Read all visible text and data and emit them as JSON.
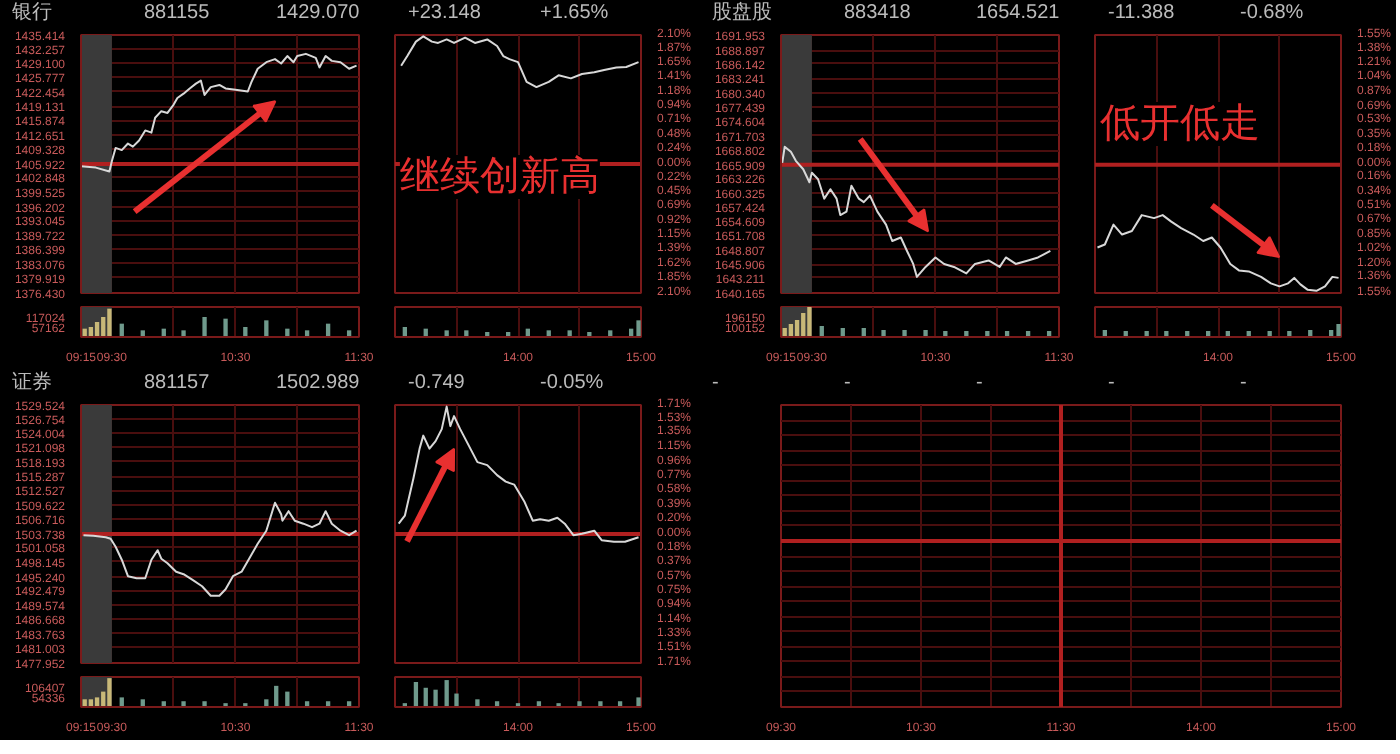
{
  "chart_data": [
    {
      "type": "line",
      "title": "银行",
      "annotations": [
        "881155",
        "1429.070",
        "+23.148",
        "+1.65%"
      ],
      "x": [
        9.25,
        9.37,
        9.48,
        9.5,
        9.53,
        9.58,
        9.63,
        9.67,
        9.72,
        9.77,
        9.82,
        9.85,
        9.9,
        9.95,
        10.0,
        10.03,
        10.08,
        10.13,
        10.18,
        10.22,
        10.25,
        10.3,
        10.37,
        10.42,
        10.5,
        10.6,
        10.63,
        10.68,
        10.75,
        10.82,
        10.87,
        10.92,
        10.97,
        11.0,
        11.07,
        11.15,
        11.18,
        11.23,
        11.28,
        11.35,
        11.42,
        11.48
      ],
      "series": [
        {
          "color": "#d8d8d8",
          "values": [
            1405.4,
            1405.1,
            1404.2,
            1406.6,
            1409.6,
            1409.1,
            1410.6,
            1409.9,
            1411.3,
            1413.6,
            1413.1,
            1416.5,
            1418.0,
            1417.6,
            1419.5,
            1421.0,
            1422.0,
            1423.2,
            1424.3,
            1425.0,
            1421.7,
            1423.5,
            1424.0,
            1423.2,
            1422.9,
            1422.5,
            1424.7,
            1427.7,
            1429.2,
            1429.9,
            1428.9,
            1430.6,
            1429.2,
            1430.6,
            1431.1,
            1430.2,
            1428.0,
            1430.6,
            1429.5,
            1429.2,
            1427.7,
            1428.4
          ]
        }
      ],
      "xlim": [
        9.25,
        11.5
      ],
      "xticks": [
        {
          "value": 9.25,
          "label": null
        },
        {
          "value": 9.5,
          "label": null
        },
        {
          "value": 10,
          "label": null
        },
        {
          "value": 10.5,
          "label": null
        },
        {
          "value": 11,
          "label": null
        },
        {
          "value": 11.5,
          "label": null
        }
      ],
      "ylim": [
        1376.43,
        1435.414
      ],
      "yticks": [
        1435.414,
        1432.257,
        {
          "value": 1429.1,
          "label": "1429.100"
        },
        1425.777,
        1422.454,
        1419.131,
        1415.874,
        1412.651,
        1409.328,
        1405.922,
        1402.848,
        1399.525,
        1396.202,
        1393.045,
        1389.722,
        1386.399,
        1383.076,
        1379.919,
        {
          "value": 1376.43,
          "label": "1376.430"
        }
      ],
      "tick_labels": "y",
      "grid": true,
      "ref_lines": [
        {
          "axis": "y",
          "value": 1405.922,
          "color": "#b02020"
        }
      ],
      "bands": [
        {
          "axis": "x",
          "from": 9.25,
          "to": 9.5,
          "color": "#3a3a3a"
        }
      ]
    },
    {
      "type": "line",
      "annotations": [
        "继续创新高"
      ],
      "x": [
        13.05,
        13.1,
        13.17,
        13.23,
        13.3,
        13.35,
        13.42,
        13.48,
        13.57,
        13.65,
        13.75,
        13.83,
        13.88,
        13.93,
        14.0,
        14.07,
        14.15,
        14.25,
        14.33,
        14.43,
        14.52,
        14.62,
        14.7,
        14.8,
        14.88,
        14.98
      ],
      "series": [
        {
          "color": "#d8d8d8",
          "values": [
            1428.4,
            1430.6,
            1433.9,
            1435.1,
            1433.9,
            1433.6,
            1434.4,
            1433.6,
            1434.8,
            1433.6,
            1434.4,
            1432.9,
            1430.6,
            1429.9,
            1429.2,
            1424.7,
            1423.5,
            1424.7,
            1426.2,
            1425.5,
            1426.5,
            1426.9,
            1427.4,
            1428.0,
            1428.1,
            1429.2
          ]
        }
      ],
      "xlim": [
        13,
        15
      ],
      "xticks": [
        {
          "value": 13.5,
          "label": null
        },
        {
          "value": 14,
          "label": null
        },
        {
          "value": 14.5,
          "label": null
        },
        {
          "value": 15,
          "label": null
        }
      ],
      "ylim": [
        1376.43,
        1435.414
      ],
      "y2lim": [
        -2.1,
        2.1
      ],
      "y2ticks": [
        {
          "value": 2.1,
          "label": "2.10%"
        },
        {
          "value": 1.87,
          "label": "1.87%"
        },
        {
          "value": 1.65,
          "label": "1.65%"
        },
        {
          "value": 1.41,
          "label": "1.41%"
        },
        {
          "value": 1.18,
          "label": "1.18%"
        },
        {
          "value": 0.94,
          "label": "0.94%"
        },
        {
          "value": 0.71,
          "label": "0.71%"
        },
        {
          "value": 0.48,
          "label": "0.48%"
        },
        {
          "value": 0.24,
          "label": "0.24%"
        },
        {
          "value": 0,
          "label": "0.00%"
        },
        {
          "value": -0.22,
          "label": "0.22%"
        },
        {
          "value": -0.45,
          "label": "0.45%"
        },
        {
          "value": -0.69,
          "label": "0.69%"
        },
        {
          "value": -0.92,
          "label": "0.92%"
        },
        {
          "value": -1.15,
          "label": "1.15%"
        },
        {
          "value": -1.39,
          "label": "1.39%"
        },
        {
          "value": -1.62,
          "label": "1.62%"
        },
        {
          "value": -1.85,
          "label": "1.85%"
        },
        {
          "value": -2.1,
          "label": "2.10%"
        }
      ],
      "tick_labels": "y",
      "grid": true,
      "ref_lines": [
        {
          "axis": "y",
          "value": 1405.922,
          "color": "#b02020"
        }
      ]
    },
    {
      "type": "bar",
      "series": [
        {
          "color": "#c8b878",
          "x": [
            9.28,
            9.33,
            9.38,
            9.43,
            9.48
          ],
          "values": [
            50000,
            60000,
            90000,
            120000,
            170000
          ]
        },
        {
          "color": "#6f9a8c",
          "x": [
            9.58,
            9.75,
            9.92,
            10.08,
            10.25,
            10.42,
            10.58,
            10.75,
            10.92,
            11.08,
            11.25,
            11.42
          ],
          "values": [
            80000,
            40000,
            50000,
            40000,
            120000,
            110000,
            60000,
            100000,
            50000,
            40000,
            80000,
            40000
          ]
        }
      ],
      "xlim": [
        9.25,
        11.5
      ],
      "xticks": [
        {
          "value": 9.25,
          "label": "09:15"
        },
        {
          "value": 9.5,
          "label": "09:30"
        },
        {
          "value": 10,
          "label": null
        },
        {
          "value": 10.5,
          "label": "10:30"
        },
        {
          "value": 11,
          "label": null
        },
        {
          "value": 11.5,
          "label": "11:30"
        }
      ],
      "ylim": [
        0,
        180000
      ],
      "yticks": [
        117024,
        57162
      ],
      "grid": "x",
      "bands": [
        {
          "axis": "x",
          "from": 9.25,
          "to": 9.5,
          "color": "#3a3a3a"
        }
      ]
    },
    {
      "type": "bar",
      "series": [
        {
          "color": "#6f9a8c",
          "x": [
            13.08,
            13.25,
            13.42,
            13.58,
            13.75,
            13.92,
            14.08,
            14.25,
            14.42,
            14.58,
            14.75,
            14.92,
            14.98
          ],
          "values": [
            60000,
            50000,
            40000,
            40000,
            30000,
            30000,
            50000,
            40000,
            40000,
            30000,
            40000,
            50000,
            100000
          ]
        }
      ],
      "xlim": [
        13,
        15
      ],
      "xticks": [
        {
          "value": 13.5,
          "label": null
        },
        {
          "value": 14,
          "label": "14:00"
        },
        {
          "value": 14.5,
          "label": null
        },
        {
          "value": 15,
          "label": "15:00"
        }
      ],
      "ylim": [
        0,
        180000
      ],
      "grid": "x",
      "tick_labels": "x"
    },
    {
      "type": "line",
      "title": "股盘股",
      "annotations": [
        "883418",
        "1654.521",
        "-11.388",
        "-0.68%"
      ],
      "x": [
        9.26,
        9.28,
        9.33,
        9.37,
        9.43,
        9.48,
        9.5,
        9.55,
        9.6,
        9.65,
        9.7,
        9.73,
        9.78,
        9.82,
        9.88,
        9.92,
        9.97,
        10.03,
        10.1,
        10.15,
        10.22,
        10.27,
        10.32,
        10.35,
        10.42,
        10.5,
        10.57,
        10.65,
        10.75,
        10.82,
        10.93,
        11.02,
        11.07,
        11.15,
        11.25,
        11.33,
        11.43
      ],
      "series": [
        {
          "color": "#d8d8d8",
          "values": [
            1666.3,
            1669.5,
            1668.5,
            1666.7,
            1665.0,
            1662.4,
            1664.3,
            1663.0,
            1659.1,
            1661.0,
            1659.1,
            1655.8,
            1656.5,
            1661.7,
            1659.1,
            1658.4,
            1659.7,
            1656.5,
            1653.9,
            1650.6,
            1651.3,
            1648.6,
            1646.0,
            1643.4,
            1645.4,
            1647.3,
            1646.0,
            1645.4,
            1644.1,
            1646.0,
            1646.7,
            1645.4,
            1647.3,
            1646.0,
            1646.7,
            1647.3,
            1648.6
          ]
        }
      ],
      "xlim": [
        9.25,
        11.5
      ],
      "xticks": [
        {
          "value": 9.25,
          "label": null
        },
        {
          "value": 9.5,
          "label": null
        },
        {
          "value": 10,
          "label": null
        },
        {
          "value": 10.5,
          "label": null
        },
        {
          "value": 11,
          "label": null
        },
        {
          "value": 11.5,
          "label": null
        }
      ],
      "ylim": [
        1640.165,
        1691.953
      ],
      "yticks": [
        1691.953,
        1688.897,
        1686.142,
        1683.241,
        {
          "value": 1680.34,
          "label": "1680.340"
        },
        1677.439,
        1674.604,
        1671.703,
        1668.802,
        1665.909,
        1663.226,
        1660.325,
        1657.424,
        1654.609,
        1651.708,
        1648.807,
        1645.906,
        1643.211,
        1640.165
      ],
      "tick_labels": "y",
      "grid": true,
      "ref_lines": [
        {
          "axis": "y",
          "value": 1665.909,
          "color": "#b02020"
        }
      ],
      "bands": [
        {
          "axis": "x",
          "from": 9.25,
          "to": 9.5,
          "color": "#3a3a3a"
        }
      ]
    },
    {
      "type": "line",
      "annotations": [
        "低开低走"
      ],
      "x": [
        13.02,
        13.08,
        13.15,
        13.22,
        13.3,
        13.38,
        13.48,
        13.55,
        13.62,
        13.7,
        13.8,
        13.88,
        13.95,
        14.02,
        14.1,
        14.17,
        14.25,
        14.35,
        14.43,
        14.5,
        14.57,
        14.62,
        14.67,
        14.73,
        14.8,
        14.87,
        14.93,
        14.98
      ],
      "series": [
        {
          "color": "#d8d8d8",
          "values": [
            1649.3,
            1649.9,
            1653.9,
            1651.9,
            1652.6,
            1655.8,
            1655.2,
            1655.8,
            1654.5,
            1653.2,
            1651.9,
            1650.6,
            1651.3,
            1649.3,
            1646.0,
            1644.7,
            1644.5,
            1643.4,
            1642.1,
            1641.5,
            1642.1,
            1643.2,
            1641.9,
            1640.8,
            1640.6,
            1641.5,
            1643.4,
            1643.2
          ]
        }
      ],
      "xlim": [
        13,
        15
      ],
      "xticks": [
        {
          "value": 13.5,
          "label": null
        },
        {
          "value": 14,
          "label": null
        },
        {
          "value": 14.5,
          "label": null
        },
        {
          "value": 15,
          "label": null
        }
      ],
      "ylim": [
        1640.165,
        1691.953
      ],
      "y2lim": [
        -1.55,
        1.55
      ],
      "y2ticks": [
        {
          "value": 1.55,
          "label": "1.55%"
        },
        {
          "value": 1.38,
          "label": "1.38%"
        },
        {
          "value": 1.21,
          "label": "1.21%"
        },
        {
          "value": 1.04,
          "label": "1.04%"
        },
        {
          "value": 0.87,
          "label": "0.87%"
        },
        {
          "value": 0.69,
          "label": "0.69%"
        },
        {
          "value": 0.53,
          "label": "0.53%"
        },
        {
          "value": 0.35,
          "label": "0.35%"
        },
        {
          "value": 0.18,
          "label": "0.18%"
        },
        {
          "value": 0,
          "label": "0.00%"
        },
        {
          "value": -0.16,
          "label": "0.16%"
        },
        {
          "value": -0.34,
          "label": "0.34%"
        },
        {
          "value": -0.51,
          "label": "0.51%"
        },
        {
          "value": -0.67,
          "label": "0.67%"
        },
        {
          "value": -0.85,
          "label": "0.85%"
        },
        {
          "value": -1.02,
          "label": "1.02%"
        },
        {
          "value": -1.2,
          "label": "1.20%"
        },
        {
          "value": -1.36,
          "label": "1.36%"
        },
        {
          "value": -1.55,
          "label": "1.55%"
        }
      ],
      "tick_labels": "y",
      "grid": true,
      "ref_lines": [
        {
          "axis": "y",
          "value": 1665.909,
          "color": "#b02020"
        }
      ]
    },
    {
      "type": "bar",
      "series": [
        {
          "color": "#c8b878",
          "x": [
            9.28,
            9.33,
            9.38,
            9.43,
            9.48
          ],
          "values": [
            90000,
            130000,
            170000,
            240000,
            300000
          ]
        },
        {
          "color": "#6f9a8c",
          "x": [
            9.58,
            9.75,
            9.92,
            10.08,
            10.25,
            10.42,
            10.58,
            10.75,
            10.92,
            11.08,
            11.25,
            11.42
          ],
          "values": [
            110000,
            90000,
            90000,
            70000,
            70000,
            70000,
            60000,
            60000,
            60000,
            60000,
            60000,
            60000
          ]
        }
      ],
      "xlim": [
        9.25,
        11.5
      ],
      "xticks": [
        {
          "value": 9.25,
          "label": "09:15"
        },
        {
          "value": 9.5,
          "label": "09:30"
        },
        {
          "value": 10,
          "label": null
        },
        {
          "value": 10.5,
          "label": "10:30"
        },
        {
          "value": 11,
          "label": null
        },
        {
          "value": 11.5,
          "label": "11:30"
        }
      ],
      "ylim": [
        0,
        300000
      ],
      "yticks": [
        196150,
        100152
      ],
      "grid": "x",
      "bands": [
        {
          "axis": "x",
          "from": 9.25,
          "to": 9.5,
          "color": "#3a3a3a"
        }
      ]
    },
    {
      "type": "bar",
      "series": [
        {
          "color": "#6f9a8c",
          "x": [
            13.08,
            13.25,
            13.42,
            13.58,
            13.75,
            13.92,
            14.08,
            14.25,
            14.42,
            14.58,
            14.75,
            14.92,
            14.98
          ],
          "values": [
            70000,
            60000,
            60000,
            60000,
            60000,
            60000,
            60000,
            60000,
            60000,
            60000,
            70000,
            70000,
            130000
          ]
        }
      ],
      "xlim": [
        13,
        15
      ],
      "xticks": [
        {
          "value": 13.5,
          "label": null
        },
        {
          "value": 14,
          "label": "14:00"
        },
        {
          "value": 14.5,
          "label": null
        },
        {
          "value": 15,
          "label": "15:00"
        }
      ],
      "ylim": [
        0,
        300000
      ],
      "grid": "x",
      "tick_labels": "x"
    },
    {
      "type": "line",
      "title": "证券",
      "annotations": [
        "881157",
        "1502.989",
        "-0.749",
        "-0.05%"
      ],
      "x": [
        9.27,
        9.35,
        9.45,
        9.49,
        9.53,
        9.58,
        9.63,
        9.7,
        9.77,
        9.82,
        9.87,
        9.9,
        9.95,
        10.02,
        10.08,
        10.15,
        10.23,
        10.3,
        10.37,
        10.42,
        10.48,
        10.55,
        10.62,
        10.68,
        10.75,
        10.82,
        10.87,
        10.88,
        10.93,
        10.98,
        11.05,
        11.12,
        11.18,
        11.23,
        11.28,
        11.35,
        11.42,
        11.48
      ],
      "series": [
        {
          "color": "#d8d8d8",
          "values": [
            1503.5,
            1503.4,
            1503.1,
            1502.8,
            1501.2,
            1498.6,
            1495.3,
            1494.9,
            1494.9,
            1498.6,
            1500.5,
            1498.8,
            1497.9,
            1496.2,
            1495.7,
            1494.6,
            1493.3,
            1491.4,
            1491.4,
            1492.7,
            1495.3,
            1496.2,
            1499.2,
            1501.8,
            1504.4,
            1510.0,
            1507.7,
            1506.4,
            1508.3,
            1506.4,
            1505.8,
            1505.1,
            1505.8,
            1508.3,
            1505.8,
            1504.4,
            1503.5,
            1504.4
          ]
        }
      ],
      "xlim": [
        9.25,
        11.5
      ],
      "xticks": [
        {
          "value": 9.25,
          "label": null
        },
        {
          "value": 9.5,
          "label": null
        },
        {
          "value": 10,
          "label": null
        },
        {
          "value": 10.5,
          "label": null
        },
        {
          "value": 11,
          "label": null
        },
        {
          "value": 11.5,
          "label": null
        }
      ],
      "ylim": [
        1477.952,
        1529.524
      ],
      "yticks": [
        1529.524,
        1526.754,
        1524.004,
        1521.098,
        1518.193,
        1515.287,
        1512.527,
        1509.622,
        1506.716,
        1503.738,
        1501.058,
        1498.145,
        {
          "value": 1495.24,
          "label": "1495.240"
        },
        1492.479,
        1489.574,
        1486.668,
        1483.763,
        1481.003,
        1477.952
      ],
      "tick_labels": "y",
      "grid": true,
      "ref_lines": [
        {
          "axis": "y",
          "value": 1503.738,
          "color": "#b02020"
        }
      ],
      "bands": [
        {
          "axis": "x",
          "from": 9.25,
          "to": 9.5,
          "color": "#3a3a3a"
        }
      ]
    },
    {
      "type": "line",
      "x": [
        13.03,
        13.08,
        13.15,
        13.2,
        13.23,
        13.28,
        13.33,
        13.38,
        13.42,
        13.45,
        13.48,
        13.53,
        13.6,
        13.67,
        13.75,
        13.83,
        13.9,
        13.97,
        14.05,
        14.12,
        14.18,
        14.25,
        14.32,
        14.38,
        14.45,
        14.52,
        14.62,
        14.68,
        14.78,
        14.87,
        14.98
      ],
      "series": [
        {
          "color": "#d8d8d8",
          "values": [
            1505.8,
            1507.4,
            1514.9,
            1520.8,
            1523.4,
            1520.8,
            1522.3,
            1524.7,
            1529.2,
            1525.3,
            1527.3,
            1524.7,
            1521.4,
            1518.1,
            1517.5,
            1515.5,
            1514.2,
            1513.6,
            1510.3,
            1506.4,
            1506.7,
            1506.4,
            1507.0,
            1505.8,
            1503.5,
            1503.8,
            1504.4,
            1502.5,
            1502.2,
            1502.2,
            1503.1
          ]
        }
      ],
      "xlim": [
        13,
        15
      ],
      "xticks": [
        {
          "value": 13.5,
          "label": null
        },
        {
          "value": 14,
          "label": null
        },
        {
          "value": 14.5,
          "label": null
        },
        {
          "value": 15,
          "label": null
        }
      ],
      "ylim": [
        1477.952,
        1529.524
      ],
      "y2lim": [
        -1.71,
        1.71
      ],
      "y2ticks": [
        {
          "value": 1.71,
          "label": "1.71%"
        },
        {
          "value": 1.53,
          "label": "1.53%"
        },
        {
          "value": 1.35,
          "label": "1.35%"
        },
        {
          "value": 1.15,
          "label": "1.15%"
        },
        {
          "value": 0.96,
          "label": "0.96%"
        },
        {
          "value": 0.77,
          "label": "0.77%"
        },
        {
          "value": 0.58,
          "label": "0.58%"
        },
        {
          "value": 0.39,
          "label": "0.39%"
        },
        {
          "value": 0.2,
          "label": "0.20%"
        },
        {
          "value": 0,
          "label": "0.00%"
        },
        {
          "value": -0.18,
          "label": "0.18%"
        },
        {
          "value": -0.37,
          "label": "0.37%"
        },
        {
          "value": -0.57,
          "label": "0.57%"
        },
        {
          "value": -0.75,
          "label": "0.75%"
        },
        {
          "value": -0.94,
          "label": "0.94%"
        },
        {
          "value": -1.14,
          "label": "1.14%"
        },
        {
          "value": -1.33,
          "label": "1.33%"
        },
        {
          "value": -1.51,
          "label": "1.51%"
        },
        {
          "value": -1.71,
          "label": "1.71%"
        }
      ],
      "tick_labels": "y",
      "grid": true,
      "ref_lines": [
        {
          "axis": "y",
          "value": 1503.738,
          "color": "#b02020"
        }
      ]
    },
    {
      "type": "bar",
      "series": [
        {
          "color": "#c8b878",
          "x": [
            9.28,
            9.33,
            9.38,
            9.43,
            9.48
          ],
          "values": [
            40000,
            40000,
            50000,
            80000,
            150000
          ]
        },
        {
          "color": "#6f9a8c",
          "x": [
            9.58,
            9.75,
            9.92,
            10.08,
            10.25,
            10.42,
            10.58,
            10.75,
            10.83,
            10.92,
            11.08,
            11.25,
            11.42
          ],
          "values": [
            50000,
            40000,
            30000,
            30000,
            30000,
            20000,
            20000,
            40000,
            110000,
            80000,
            30000,
            30000,
            30000
          ]
        }
      ],
      "xlim": [
        9.25,
        11.5
      ],
      "xticks": [
        {
          "value": 9.25,
          "label": "09:15"
        },
        {
          "value": 9.5,
          "label": "09:30"
        },
        {
          "value": 10,
          "label": null
        },
        {
          "value": 10.5,
          "label": "10:30"
        },
        {
          "value": 11,
          "label": null
        },
        {
          "value": 11.5,
          "label": "11:30"
        }
      ],
      "ylim": [
        0,
        156000
      ],
      "yticks": [
        106407,
        54336
      ],
      "grid": "x",
      "bands": [
        {
          "axis": "x",
          "from": 9.25,
          "to": 9.5,
          "color": "#3a3a3a"
        }
      ]
    },
    {
      "type": "bar",
      "series": [
        {
          "color": "#6f9a8c",
          "x": [
            13.08,
            13.17,
            13.25,
            13.33,
            13.42,
            13.5,
            13.67,
            13.83,
            14.0,
            14.17,
            14.33,
            14.5,
            14.67,
            14.83,
            14.98
          ],
          "values": [
            20000,
            130000,
            100000,
            90000,
            140000,
            70000,
            40000,
            30000,
            20000,
            30000,
            20000,
            30000,
            30000,
            30000,
            50000
          ]
        }
      ],
      "xlim": [
        13,
        15
      ],
      "xticks": [
        {
          "value": 13.5,
          "label": null
        },
        {
          "value": 14,
          "label": "14:00"
        },
        {
          "value": 14.5,
          "label": null
        },
        {
          "value": 15,
          "label": "15:00"
        }
      ],
      "ylim": [
        0,
        156000
      ],
      "grid": "x",
      "tick_labels": "x"
    },
    {
      "type": "other",
      "annotations": [
        "-",
        "-",
        "-",
        "-",
        "-",
        "09:30",
        "10:30",
        "11:30",
        "14:00",
        "15:00"
      ]
    }
  ]
}
